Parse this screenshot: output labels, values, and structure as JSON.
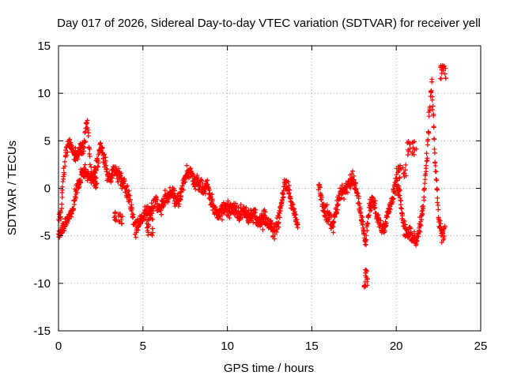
{
  "chart_data": {
    "type": "scatter",
    "title": "Day 017 of 2026, Sidereal Day-to-day VTEC variation (SDTVAR) for receiver yell",
    "xlabel": "GPS time / hours",
    "ylabel": "SDTVAR / TECUs",
    "xlim": [
      0,
      25
    ],
    "ylim": [
      -15,
      15
    ],
    "xticks": [
      0,
      5,
      10,
      15,
      20,
      25
    ],
    "yticks": [
      -15,
      -10,
      -5,
      0,
      5,
      10,
      15
    ],
    "grid": true,
    "marker": "+",
    "series_color": "#ff0000",
    "trend": [
      [
        0.0,
        -3.0
      ],
      [
        0.15,
        -2.5
      ],
      [
        0.3,
        1.5
      ],
      [
        0.4,
        3.5
      ],
      [
        0.5,
        4.5
      ],
      [
        0.6,
        5.0
      ],
      [
        0.75,
        4.3
      ],
      [
        0.9,
        3.8
      ],
      [
        1.1,
        3.5
      ],
      [
        1.3,
        4.0
      ],
      [
        1.5,
        4.5
      ],
      [
        1.7,
        7.0
      ],
      [
        1.8,
        5.0
      ],
      [
        1.9,
        2.0
      ],
      [
        2.1,
        1.5
      ],
      [
        2.3,
        2.5
      ],
      [
        2.5,
        4.5
      ],
      [
        2.7,
        3.0
      ],
      [
        2.9,
        1.5
      ],
      [
        3.1,
        1.0
      ],
      [
        3.3,
        2.0
      ],
      [
        3.5,
        1.5
      ],
      [
        3.7,
        1.0
      ],
      [
        3.9,
        0.5
      ],
      [
        4.2,
        -1.0
      ],
      [
        4.4,
        -3.0
      ],
      [
        4.6,
        -4.5
      ],
      [
        4.8,
        -3.5
      ],
      [
        5.0,
        -3.0
      ],
      [
        5.2,
        -2.5
      ],
      [
        5.4,
        -2.5
      ],
      [
        5.6,
        -2.0
      ],
      [
        5.8,
        -1.5
      ],
      [
        6.0,
        -2.0
      ],
      [
        6.2,
        -1.5
      ],
      [
        6.4,
        -1.0
      ],
      [
        6.6,
        -0.5
      ],
      [
        6.8,
        -0.5
      ],
      [
        7.0,
        -1.5
      ],
      [
        7.2,
        -1.0
      ],
      [
        7.4,
        0.5
      ],
      [
        7.6,
        1.5
      ],
      [
        7.8,
        2.0
      ],
      [
        8.0,
        0.5
      ],
      [
        8.2,
        1.0
      ],
      [
        8.4,
        0.5
      ],
      [
        8.6,
        -0.5
      ],
      [
        8.8,
        0.5
      ],
      [
        9.0,
        -1.0
      ],
      [
        9.2,
        -2.0
      ],
      [
        9.4,
        -3.0
      ],
      [
        9.6,
        -2.5
      ],
      [
        9.8,
        -2.0
      ],
      [
        10.0,
        -2.0
      ],
      [
        10.2,
        -2.5
      ],
      [
        10.4,
        -2.0
      ],
      [
        10.6,
        -2.5
      ],
      [
        10.8,
        -2.5
      ],
      [
        11.0,
        -2.5
      ],
      [
        11.2,
        -3.0
      ],
      [
        11.4,
        -3.0
      ],
      [
        11.6,
        -2.5
      ],
      [
        11.8,
        -3.5
      ],
      [
        12.0,
        -3.5
      ],
      [
        12.2,
        -3.0
      ],
      [
        12.4,
        -3.5
      ],
      [
        12.6,
        -4.0
      ],
      [
        12.8,
        -4.5
      ],
      [
        13.0,
        -3.5
      ],
      [
        13.2,
        -1.5
      ],
      [
        13.4,
        0.5
      ],
      [
        13.6,
        0.0
      ],
      [
        13.8,
        -1.5
      ],
      [
        14.0,
        -3.0
      ],
      [
        14.2,
        -4.0
      ],
      [
        15.4,
        0.5
      ],
      [
        15.6,
        -1.5
      ],
      [
        15.8,
        -2.5
      ],
      [
        16.0,
        -3.0
      ],
      [
        16.2,
        -4.0
      ],
      [
        16.4,
        -3.0
      ],
      [
        16.6,
        -1.0
      ],
      [
        16.8,
        -0.5
      ],
      [
        17.0,
        0.0
      ],
      [
        17.2,
        0.5
      ],
      [
        17.4,
        1.0
      ],
      [
        17.6,
        0.0
      ],
      [
        17.8,
        -1.5
      ],
      [
        18.0,
        -3.5
      ],
      [
        18.2,
        -5.5
      ],
      [
        18.4,
        -2.0
      ],
      [
        18.6,
        -1.0
      ],
      [
        18.8,
        -2.5
      ],
      [
        19.0,
        -3.5
      ],
      [
        19.2,
        -4.5
      ],
      [
        19.4,
        -3.5
      ],
      [
        19.6,
        -2.0
      ],
      [
        19.8,
        -1.0
      ],
      [
        20.0,
        1.0
      ],
      [
        20.2,
        -0.5
      ],
      [
        20.4,
        -3.5
      ],
      [
        20.6,
        -5.0
      ],
      [
        20.8,
        -4.5
      ],
      [
        21.0,
        -5.0
      ],
      [
        21.2,
        -5.5
      ],
      [
        21.4,
        -4.0
      ],
      [
        21.6,
        -2.0
      ],
      [
        21.8,
        3.0
      ],
      [
        22.0,
        9.0
      ],
      [
        22.1,
        11.0
      ],
      [
        22.3,
        3.0
      ],
      [
        22.5,
        -3.0
      ],
      [
        22.7,
        -5.0
      ],
      [
        22.9,
        -4.5
      ]
    ],
    "bands": [
      [
        0.0,
        -4.8
      ],
      [
        0.15,
        -4.5
      ],
      [
        0.3,
        -4.0
      ],
      [
        0.4,
        -3.8
      ],
      [
        0.5,
        -3.5
      ],
      [
        0.6,
        -3.0
      ],
      [
        0.75,
        -2.5
      ],
      [
        0.9,
        -1.5
      ],
      [
        1.1,
        0.0
      ],
      [
        1.3,
        1.0
      ],
      [
        1.5,
        2.0
      ],
      [
        1.7,
        1.5
      ],
      [
        1.9,
        1.0
      ],
      [
        2.1,
        1.0
      ],
      [
        2.3,
        0.5
      ]
    ],
    "clusters": [
      {
        "x": [
          3.3,
          3.8
        ],
        "y": [
          -4.0,
          -2.5
        ]
      },
      {
        "x": [
          5.2,
          5.6
        ],
        "y": [
          -5.0,
          -3.0
        ]
      },
      {
        "x": [
          20.0,
          20.6
        ],
        "y": [
          1.0,
          2.5
        ]
      },
      {
        "x": [
          20.6,
          21.2
        ],
        "y": [
          3.5,
          5.0
        ]
      },
      {
        "x": [
          22.6,
          23.0
        ],
        "y": [
          11.5,
          13.0
        ]
      },
      {
        "x": [
          18.1,
          18.3
        ],
        "y": [
          -10.5,
          -8.5
        ]
      }
    ]
  }
}
